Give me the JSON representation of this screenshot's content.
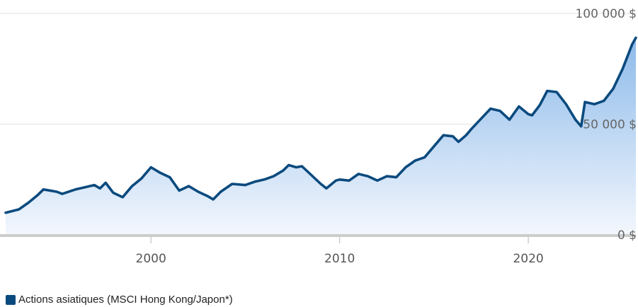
{
  "chart_data": {
    "type": "area",
    "title": "",
    "xlabel": "",
    "ylabel": "",
    "xlim": [
      1992.3,
      2025.7
    ],
    "ylim": [
      0,
      100000
    ],
    "y_ticks": [
      0,
      50000,
      100000
    ],
    "y_tick_labels": [
      "0 $",
      "50 000 $",
      "100 000 $"
    ],
    "x_ticks": [
      2000,
      2010,
      2020
    ],
    "x_tick_labels": [
      "2000",
      "2010",
      "2020"
    ],
    "grid": true,
    "legend_position": "bottom-left",
    "colors": {
      "line": "#0b4a7e",
      "fill_top": "#8dbaea",
      "fill_bottom": "#f3f7fd",
      "grid": "#e6e6e6",
      "axis": "#cccccc"
    },
    "series": [
      {
        "name": "Actions asiatiques (MSCI Hong Kong/Japon*)",
        "points": [
          [
            1992.3,
            10000
          ],
          [
            1993.0,
            11500
          ],
          [
            1993.5,
            14500
          ],
          [
            1994.0,
            18000
          ],
          [
            1994.3,
            20500
          ],
          [
            1995.0,
            19500
          ],
          [
            1995.3,
            18500
          ],
          [
            1996.0,
            20500
          ],
          [
            1996.5,
            21500
          ],
          [
            1997.0,
            22500
          ],
          [
            1997.3,
            21000
          ],
          [
            1997.6,
            23500
          ],
          [
            1998.0,
            19000
          ],
          [
            1998.5,
            17000
          ],
          [
            1999.0,
            22000
          ],
          [
            1999.5,
            25500
          ],
          [
            2000.0,
            30500
          ],
          [
            2000.5,
            28000
          ],
          [
            2001.0,
            26000
          ],
          [
            2001.5,
            20000
          ],
          [
            2002.0,
            22000
          ],
          [
            2002.5,
            19500
          ],
          [
            2003.0,
            17500
          ],
          [
            2003.3,
            16000
          ],
          [
            2003.7,
            19500
          ],
          [
            2004.3,
            23000
          ],
          [
            2005.0,
            22500
          ],
          [
            2005.5,
            24000
          ],
          [
            2006.0,
            25000
          ],
          [
            2006.5,
            26500
          ],
          [
            2007.0,
            29000
          ],
          [
            2007.3,
            31500
          ],
          [
            2007.7,
            30500
          ],
          [
            2008.0,
            31000
          ],
          [
            2008.5,
            27000
          ],
          [
            2009.0,
            23000
          ],
          [
            2009.3,
            21000
          ],
          [
            2009.8,
            24500
          ],
          [
            2010.0,
            25000
          ],
          [
            2010.5,
            24500
          ],
          [
            2011.0,
            27500
          ],
          [
            2011.5,
            26500
          ],
          [
            2012.0,
            24500
          ],
          [
            2012.5,
            26500
          ],
          [
            2013.0,
            26000
          ],
          [
            2013.5,
            30500
          ],
          [
            2014.0,
            33500
          ],
          [
            2014.5,
            35000
          ],
          [
            2015.0,
            40000
          ],
          [
            2015.5,
            45000
          ],
          [
            2016.0,
            44500
          ],
          [
            2016.3,
            42000
          ],
          [
            2016.7,
            45000
          ],
          [
            2017.0,
            48000
          ],
          [
            2017.5,
            52500
          ],
          [
            2018.0,
            57000
          ],
          [
            2018.5,
            56000
          ],
          [
            2019.0,
            52000
          ],
          [
            2019.5,
            58000
          ],
          [
            2020.0,
            54500
          ],
          [
            2020.2,
            54000
          ],
          [
            2020.6,
            58500
          ],
          [
            2021.0,
            65000
          ],
          [
            2021.5,
            64500
          ],
          [
            2022.0,
            59000
          ],
          [
            2022.5,
            52000
          ],
          [
            2022.8,
            49000
          ],
          [
            2023.0,
            60000
          ],
          [
            2023.5,
            59000
          ],
          [
            2024.0,
            60500
          ],
          [
            2024.5,
            66000
          ],
          [
            2025.0,
            75000
          ],
          [
            2025.5,
            86000
          ],
          [
            2025.7,
            89000
          ]
        ]
      }
    ]
  }
}
